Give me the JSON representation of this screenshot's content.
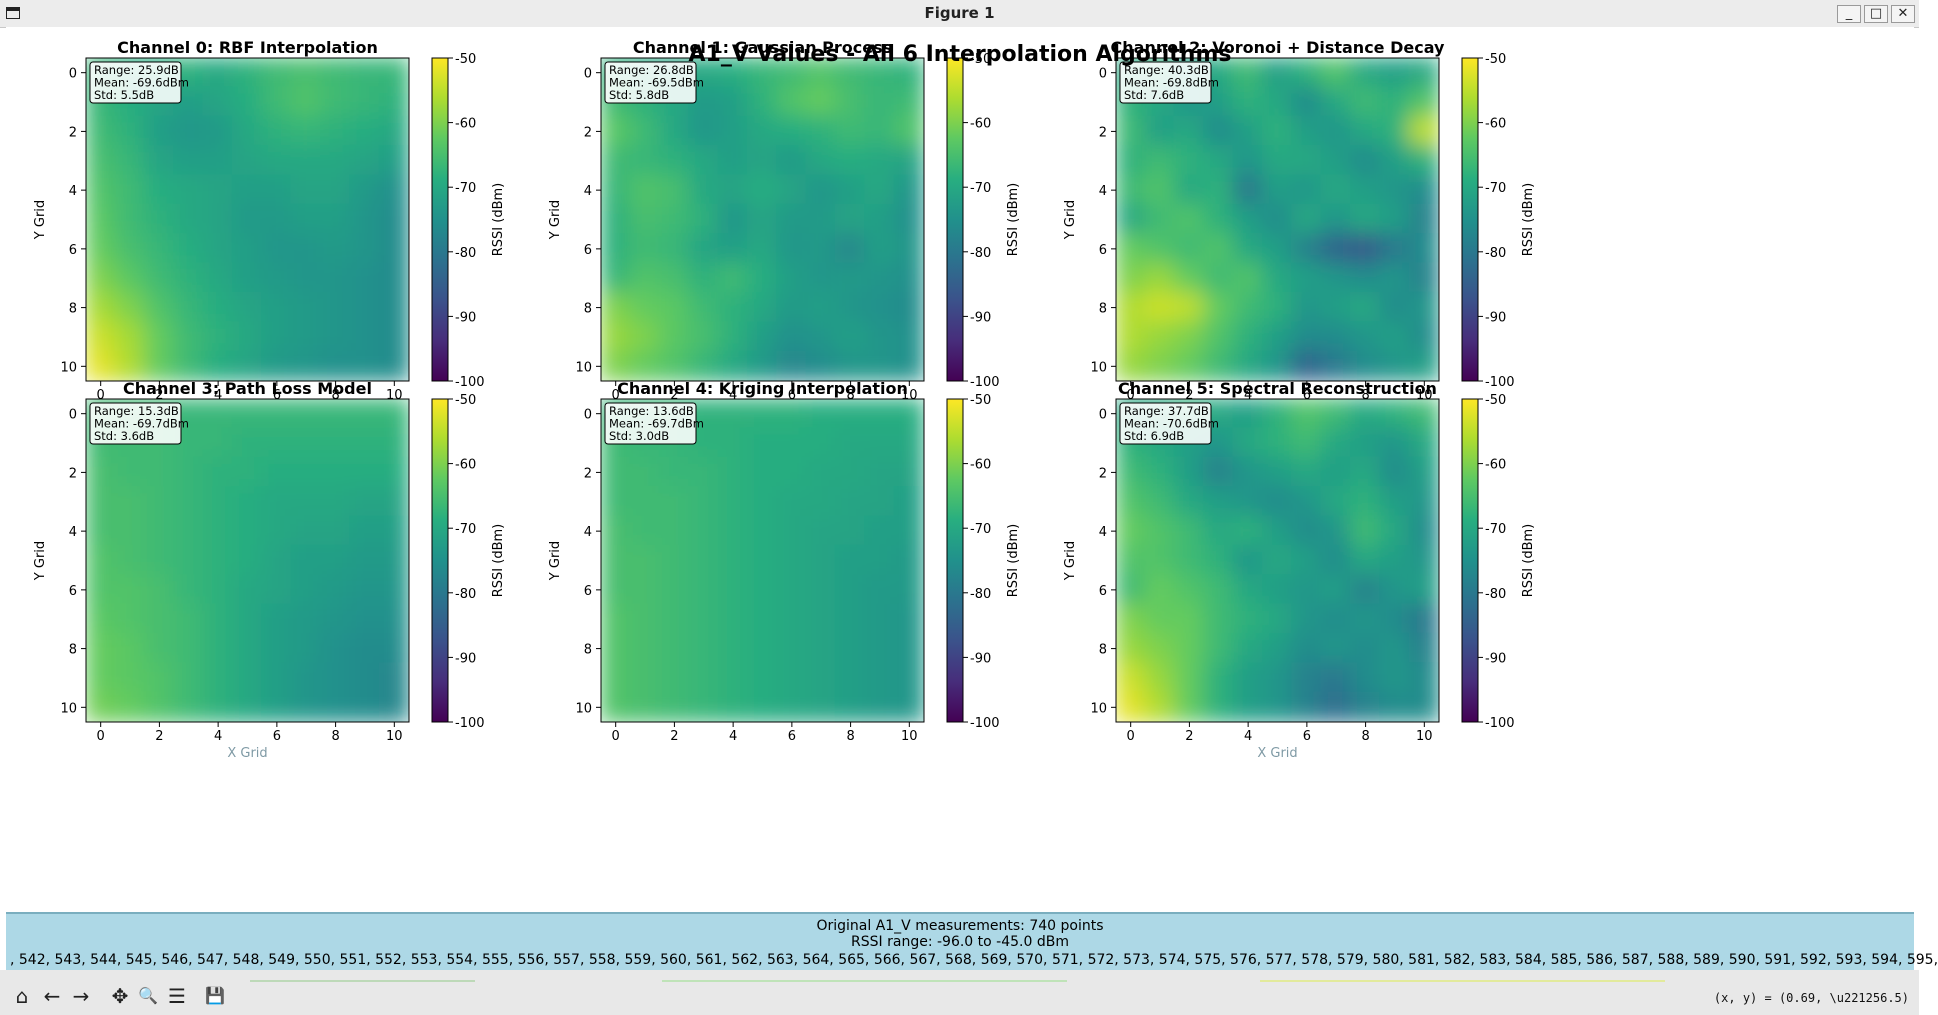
{
  "window": {
    "title": "Figure 1",
    "buttons": {
      "minimize": "_",
      "maximize": "□",
      "close": "✕"
    }
  },
  "figure": {
    "suptitle": "A1_V Values - All 6 Interpolation Algorithms"
  },
  "colormap": "viridis",
  "chart_data": [
    {
      "type": "heatmap",
      "title": "Channel 0: RBF Interpolation",
      "xlabel": "",
      "ylabel": "Y Grid",
      "colorbar_label": "RSSI (dBm)",
      "clim": [
        -100,
        -50
      ],
      "colorbar_ticks": [
        "-50",
        "-60",
        "-70",
        "-80",
        "-90",
        "-100"
      ],
      "xlim": [
        -0.5,
        10.5
      ],
      "ylim": [
        10.5,
        -0.5
      ],
      "xticks": [
        "0",
        "2",
        "4",
        "6",
        "8",
        "10"
      ],
      "yticks": [
        "0",
        "2",
        "4",
        "6",
        "8",
        "10"
      ],
      "stats": [
        "Range: 25.9dB",
        "Mean: -69.6dBm",
        "Std: 5.5dB"
      ],
      "values": [
        [
          -67,
          -69,
          -69,
          -68,
          -70,
          -68,
          -66,
          -65,
          -66,
          -67,
          -67
        ],
        [
          -67,
          -69,
          -71,
          -72,
          -71,
          -69,
          -66,
          -64,
          -66,
          -67,
          -68
        ],
        [
          -66,
          -68,
          -72,
          -74,
          -73,
          -70,
          -68,
          -67,
          -68,
          -69,
          -70
        ],
        [
          -65,
          -67,
          -71,
          -72,
          -72,
          -71,
          -70,
          -70,
          -70,
          -71,
          -72
        ],
        [
          -64,
          -66,
          -69,
          -70,
          -71,
          -72,
          -72,
          -71,
          -71,
          -73,
          -75
        ],
        [
          -63,
          -66,
          -68,
          -70,
          -71,
          -73,
          -73,
          -72,
          -72,
          -74,
          -76
        ],
        [
          -62,
          -65,
          -67,
          -69,
          -71,
          -72,
          -74,
          -74,
          -73,
          -74,
          -76
        ],
        [
          -60,
          -63,
          -66,
          -68,
          -70,
          -72,
          -73,
          -74,
          -74,
          -75,
          -76
        ],
        [
          -57,
          -60,
          -64,
          -67,
          -69,
          -71,
          -72,
          -73,
          -74,
          -75,
          -76
        ],
        [
          -54,
          -57,
          -62,
          -66,
          -68,
          -70,
          -72,
          -73,
          -74,
          -75,
          -76
        ],
        [
          -52,
          -56,
          -62,
          -66,
          -69,
          -71,
          -73,
          -74,
          -75,
          -75,
          -76
        ]
      ]
    },
    {
      "type": "heatmap",
      "title": "Channel 1: Gaussian Process",
      "xlabel": "",
      "ylabel": "Y Grid",
      "colorbar_label": "RSSI (dBm)",
      "clim": [
        -100,
        -50
      ],
      "colorbar_ticks": [
        "-50",
        "-60",
        "-70",
        "-80",
        "-90",
        "-100"
      ],
      "xlim": [
        -0.5,
        10.5
      ],
      "ylim": [
        10.5,
        -0.5
      ],
      "xticks": [
        "0",
        "2",
        "4",
        "6",
        "8",
        "10"
      ],
      "yticks": [
        "0",
        "2",
        "4",
        "6",
        "8",
        "10"
      ],
      "stats": [
        "Range: 26.8dB",
        "Mean: -69.5dBm",
        "Std: 5.8dB"
      ],
      "values": [
        [
          -68,
          -70,
          -71,
          -70,
          -69,
          -67,
          -66,
          -64,
          -66,
          -67,
          -68
        ],
        [
          -66,
          -68,
          -70,
          -73,
          -72,
          -68,
          -64,
          -62,
          -65,
          -67,
          -66
        ],
        [
          -63,
          -66,
          -70,
          -74,
          -72,
          -70,
          -69,
          -68,
          -66,
          -67,
          -64
        ],
        [
          -66,
          -67,
          -68,
          -70,
          -72,
          -71,
          -73,
          -70,
          -69,
          -70,
          -71
        ],
        [
          -67,
          -64,
          -65,
          -70,
          -71,
          -69,
          -71,
          -74,
          -72,
          -70,
          -74
        ],
        [
          -68,
          -65,
          -66,
          -68,
          -74,
          -71,
          -73,
          -73,
          -71,
          -72,
          -75
        ],
        [
          -68,
          -66,
          -67,
          -71,
          -72,
          -70,
          -74,
          -73,
          -77,
          -72,
          -74
        ],
        [
          -67,
          -64,
          -65,
          -68,
          -66,
          -69,
          -72,
          -74,
          -73,
          -74,
          -75
        ],
        [
          -60,
          -62,
          -63,
          -66,
          -68,
          -70,
          -73,
          -72,
          -74,
          -75,
          -76
        ],
        [
          -58,
          -60,
          -63,
          -65,
          -68,
          -72,
          -75,
          -74,
          -72,
          -74,
          -75
        ],
        [
          -60,
          -62,
          -64,
          -67,
          -70,
          -73,
          -77,
          -76,
          -74,
          -74,
          -75
        ]
      ]
    },
    {
      "type": "heatmap",
      "title": "Channel 2: Voronoi + Distance Decay",
      "xlabel": "",
      "ylabel": "Y Grid",
      "colorbar_label": "RSSI (dBm)",
      "clim": [
        -100,
        -50
      ],
      "colorbar_ticks": [
        "-50",
        "-60",
        "-70",
        "-80",
        "-90",
        "-100"
      ],
      "xlim": [
        -0.5,
        10.5
      ],
      "ylim": [
        10.5,
        -0.5
      ],
      "xticks": [
        "0",
        "2",
        "4",
        "6",
        "8",
        "10"
      ],
      "yticks": [
        "0",
        "2",
        "4",
        "6",
        "8",
        "10"
      ],
      "stats": [
        "Range: 40.3dB",
        "Mean: -69.8dBm",
        "Std: 7.6dB"
      ],
      "values": [
        [
          -70,
          -68,
          -72,
          -70,
          -66,
          -72,
          -68,
          -64,
          -70,
          -72,
          -70
        ],
        [
          -68,
          -70,
          -74,
          -72,
          -68,
          -70,
          -76,
          -70,
          -66,
          -68,
          -64
        ],
        [
          -66,
          -72,
          -70,
          -76,
          -72,
          -68,
          -72,
          -74,
          -70,
          -68,
          -55
        ],
        [
          -68,
          -66,
          -68,
          -70,
          -74,
          -70,
          -70,
          -72,
          -76,
          -72,
          -68
        ],
        [
          -66,
          -64,
          -70,
          -68,
          -80,
          -72,
          -74,
          -70,
          -72,
          -74,
          -76
        ],
        [
          -70,
          -66,
          -64,
          -68,
          -72,
          -76,
          -70,
          -74,
          -70,
          -72,
          -78
        ],
        [
          -62,
          -64,
          -66,
          -64,
          -70,
          -72,
          -78,
          -84,
          -86,
          -80,
          -76
        ],
        [
          -60,
          -58,
          -62,
          -66,
          -64,
          -70,
          -72,
          -74,
          -76,
          -74,
          -78
        ],
        [
          -56,
          -54,
          -55,
          -62,
          -66,
          -68,
          -74,
          -72,
          -70,
          -76,
          -74
        ],
        [
          -56,
          -58,
          -60,
          -64,
          -68,
          -72,
          -76,
          -76,
          -74,
          -72,
          -76
        ],
        [
          -58,
          -60,
          -62,
          -66,
          -70,
          -74,
          -84,
          -80,
          -76,
          -74,
          -72
        ]
      ]
    },
    {
      "type": "heatmap",
      "title": "Channel 3: Path Loss Model",
      "xlabel": "X Grid",
      "ylabel": "Y Grid",
      "colorbar_label": "RSSI (dBm)",
      "clim": [
        -100,
        -50
      ],
      "colorbar_ticks": [
        "-50",
        "-60",
        "-70",
        "-80",
        "-90",
        "-100"
      ],
      "xlim": [
        -0.5,
        10.5
      ],
      "ylim": [
        10.5,
        -0.5
      ],
      "xticks": [
        "0",
        "2",
        "4",
        "6",
        "8",
        "10"
      ],
      "yticks": [
        "0",
        "2",
        "4",
        "6",
        "8",
        "10"
      ],
      "stats": [
        "Range: 15.3dB",
        "Mean: -69.7dBm",
        "Std: 3.6dB"
      ],
      "values": [
        [
          -66,
          -66,
          -66,
          -67,
          -67,
          -67,
          -67,
          -67,
          -67,
          -67,
          -67
        ],
        [
          -66,
          -66,
          -66,
          -67,
          -67,
          -68,
          -68,
          -68,
          -68,
          -68,
          -68
        ],
        [
          -65,
          -66,
          -66,
          -67,
          -68,
          -68,
          -69,
          -69,
          -69,
          -69,
          -69
        ],
        [
          -65,
          -65,
          -66,
          -67,
          -68,
          -69,
          -70,
          -70,
          -70,
          -71,
          -71
        ],
        [
          -65,
          -65,
          -66,
          -67,
          -68,
          -69,
          -70,
          -71,
          -71,
          -72,
          -72
        ],
        [
          -64,
          -65,
          -66,
          -67,
          -68,
          -69,
          -71,
          -72,
          -72,
          -73,
          -73
        ],
        [
          -64,
          -64,
          -65,
          -67,
          -68,
          -70,
          -71,
          -72,
          -73,
          -74,
          -74
        ],
        [
          -63,
          -64,
          -65,
          -66,
          -68,
          -70,
          -72,
          -73,
          -74,
          -75,
          -75
        ],
        [
          -62,
          -63,
          -65,
          -66,
          -68,
          -70,
          -72,
          -73,
          -75,
          -76,
          -76
        ],
        [
          -62,
          -63,
          -64,
          -66,
          -68,
          -70,
          -72,
          -74,
          -75,
          -76,
          -77
        ],
        [
          -61,
          -62,
          -64,
          -66,
          -68,
          -70,
          -72,
          -74,
          -75,
          -76,
          -77
        ]
      ]
    },
    {
      "type": "heatmap",
      "title": "Channel 4: Kriging Interpolation",
      "xlabel": "",
      "ylabel": "Y Grid",
      "colorbar_label": "RSSI (dBm)",
      "clim": [
        -100,
        -50
      ],
      "colorbar_ticks": [
        "-50",
        "-60",
        "-70",
        "-80",
        "-90",
        "-100"
      ],
      "xlim": [
        -0.5,
        10.5
      ],
      "ylim": [
        10.5,
        -0.5
      ],
      "xticks": [
        "0",
        "2",
        "4",
        "6",
        "8",
        "10"
      ],
      "yticks": [
        "0",
        "2",
        "4",
        "6",
        "8",
        "10"
      ],
      "stats": [
        "Range: 13.6dB",
        "Mean: -69.7dBm",
        "Std: 3.0dB"
      ],
      "values": [
        [
          -67,
          -67,
          -67,
          -68,
          -68,
          -68,
          -68,
          -69,
          -69,
          -69,
          -69
        ],
        [
          -66,
          -67,
          -67,
          -68,
          -68,
          -69,
          -69,
          -69,
          -70,
          -70,
          -70
        ],
        [
          -66,
          -66,
          -67,
          -67,
          -68,
          -69,
          -69,
          -70,
          -70,
          -71,
          -71
        ],
        [
          -66,
          -66,
          -66,
          -67,
          -68,
          -69,
          -70,
          -70,
          -71,
          -71,
          -72
        ],
        [
          -65,
          -66,
          -66,
          -67,
          -68,
          -69,
          -70,
          -71,
          -71,
          -72,
          -72
        ],
        [
          -65,
          -65,
          -66,
          -67,
          -68,
          -69,
          -70,
          -71,
          -72,
          -72,
          -73
        ],
        [
          -65,
          -65,
          -66,
          -67,
          -68,
          -69,
          -70,
          -71,
          -72,
          -73,
          -73
        ],
        [
          -64,
          -65,
          -66,
          -67,
          -68,
          -69,
          -70,
          -71,
          -72,
          -73,
          -74
        ],
        [
          -64,
          -65,
          -66,
          -67,
          -68,
          -69,
          -70,
          -71,
          -72,
          -73,
          -74
        ],
        [
          -64,
          -65,
          -66,
          -67,
          -68,
          -69,
          -70,
          -71,
          -72,
          -73,
          -74
        ],
        [
          -64,
          -65,
          -66,
          -67,
          -68,
          -69,
          -70,
          -71,
          -72,
          -73,
          -74
        ]
      ]
    },
    {
      "type": "heatmap",
      "title": "Channel 5: Spectral Reconstruction",
      "xlabel": "X Grid",
      "ylabel": "Y Grid",
      "colorbar_label": "RSSI (dBm)",
      "clim": [
        -100,
        -50
      ],
      "colorbar_ticks": [
        "-50",
        "-60",
        "-70",
        "-80",
        "-90",
        "-100"
      ],
      "xlim": [
        -0.5,
        10.5
      ],
      "ylim": [
        10.5,
        -0.5
      ],
      "xticks": [
        "0",
        "2",
        "4",
        "6",
        "8",
        "10"
      ],
      "yticks": [
        "0",
        "2",
        "4",
        "6",
        "8",
        "10"
      ],
      "stats": [
        "Range: 37.7dB",
        "Mean: -70.6dBm",
        "Std: 6.9dB"
      ],
      "values": [
        [
          -70,
          -70,
          -68,
          -70,
          -72,
          -68,
          -64,
          -66,
          -70,
          -68,
          -66
        ],
        [
          -68,
          -70,
          -72,
          -74,
          -70,
          -68,
          -66,
          -70,
          -72,
          -74,
          -70
        ],
        [
          -66,
          -68,
          -72,
          -78,
          -74,
          -72,
          -70,
          -72,
          -70,
          -76,
          -72
        ],
        [
          -64,
          -66,
          -70,
          -72,
          -74,
          -76,
          -74,
          -70,
          -68,
          -72,
          -74
        ],
        [
          -62,
          -64,
          -66,
          -70,
          -68,
          -72,
          -76,
          -74,
          -66,
          -70,
          -76
        ],
        [
          -64,
          -64,
          -66,
          -68,
          -74,
          -70,
          -72,
          -76,
          -70,
          -72,
          -74
        ],
        [
          -66,
          -62,
          -64,
          -66,
          -70,
          -72,
          -74,
          -72,
          -78,
          -74,
          -72
        ],
        [
          -60,
          -62,
          -62,
          -66,
          -68,
          -70,
          -74,
          -76,
          -74,
          -76,
          -80
        ],
        [
          -58,
          -60,
          -62,
          -66,
          -70,
          -72,
          -76,
          -74,
          -76,
          -74,
          -78
        ],
        [
          -54,
          -58,
          -62,
          -68,
          -72,
          -74,
          -78,
          -80,
          -76,
          -74,
          -76
        ],
        [
          -52,
          -56,
          -62,
          -68,
          -72,
          -74,
          -78,
          -82,
          -78,
          -76,
          -76
        ]
      ]
    }
  ],
  "info_panel": {
    "line1": "Original A1_V measurements: 740 points",
    "line2": "RSSI range: -96.0 to -45.0 dBm",
    "line3": ", 542, 543, 544, 545, 546, 547, 548, 549, 550, 551, 552, 553, 554, 555, 556, 557, 558, 559, 560, 561, 562, 563, 564, 565, 566, 567, 568, 569, 570, 571, 572, 573, 574, 575, 576, 577, 578, 579, 580, 581, 582, 583, 584, 585, 586, 587, 588, 589, 590, 591, 592, 593, 594, 595,"
  },
  "toolbar": {
    "home": "⌂",
    "back": "←",
    "forward": "→",
    "pan": "✥",
    "zoom": "🔍",
    "configure": "☰",
    "save": "💾",
    "coords": "(x, y) = (0.69, \\u221256.5)"
  }
}
